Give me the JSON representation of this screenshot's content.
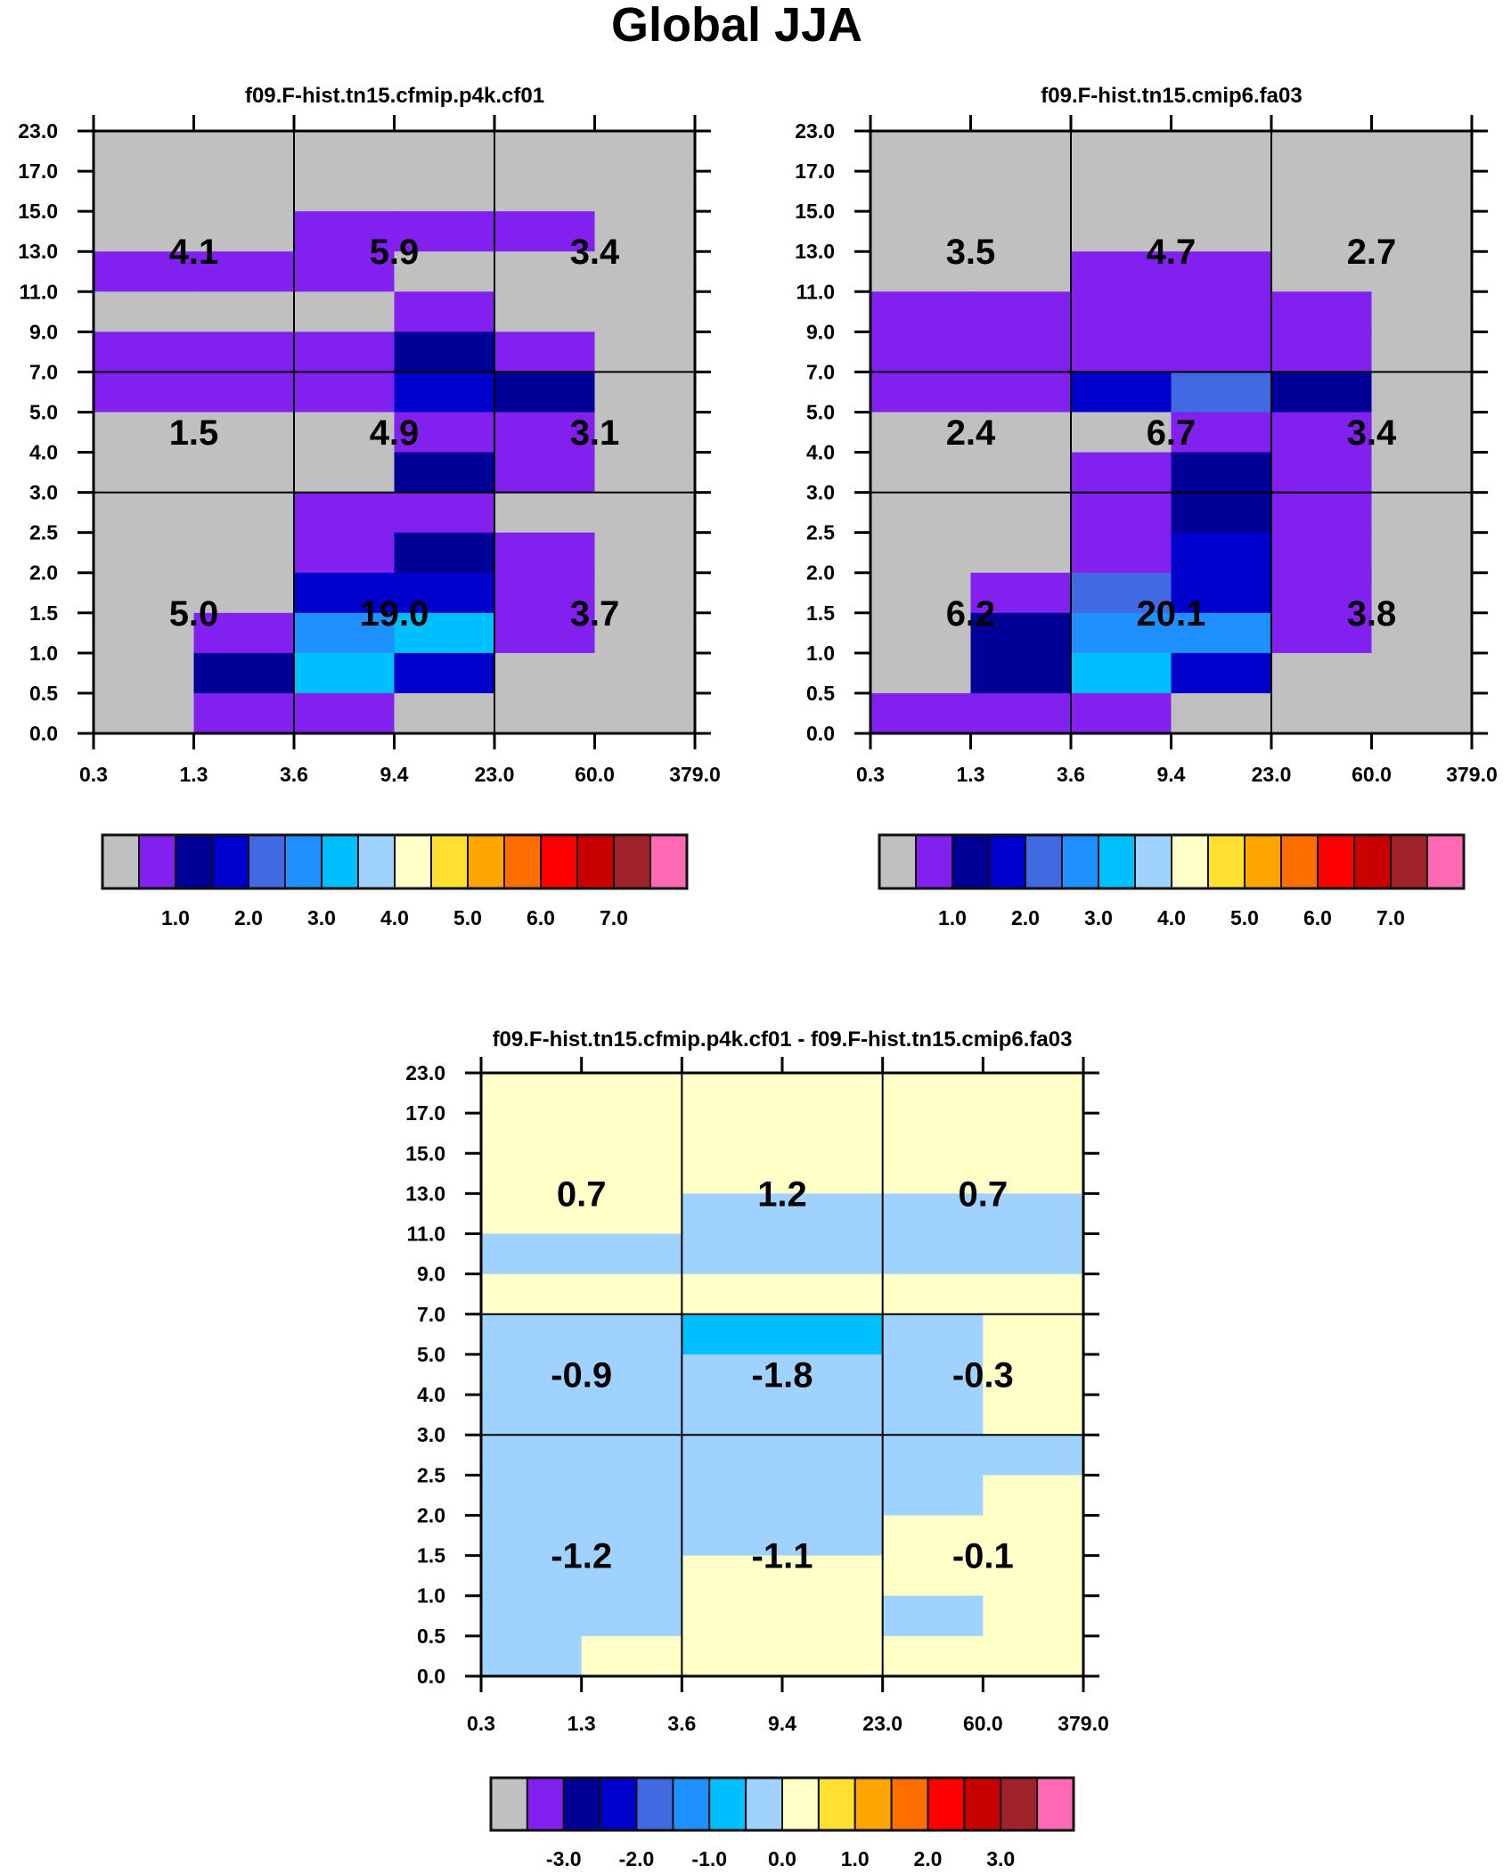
{
  "title": "Global JJA",
  "palette": [
    "#C0C0C0",
    "#8220F0",
    "#000096",
    "#0000CD",
    "#4169E1",
    "#1E90FF",
    "#00BFFF",
    "#A0D2FF",
    "#FFFFC8",
    "#FFDF2F",
    "#FFA500",
    "#FF6E00",
    "#FF0000",
    "#C80000",
    "#A0222A",
    "#FF69B4"
  ],
  "chart_data": [
    {
      "type": "heatmap",
      "title": "f09.F-hist.tn15.cfmip.p4k.cf01",
      "x_ticks": [
        "0.3",
        "1.3",
        "3.6",
        "9.4",
        "23.0",
        "60.0",
        "379.0"
      ],
      "y_ticks": [
        "0.0",
        "0.5",
        "1.0",
        "1.5",
        "2.0",
        "2.5",
        "3.0",
        "4.0",
        "5.0",
        "7.0",
        "9.0",
        "11.0",
        "13.0",
        "15.0",
        "17.0",
        "23.0"
      ],
      "bins_top_to_bottom": [
        [
          0,
          0,
          0,
          0,
          0,
          0
        ],
        [
          0,
          0,
          0,
          0,
          0,
          0
        ],
        [
          0,
          0,
          1,
          1,
          1,
          0
        ],
        [
          1,
          1,
          1,
          0,
          0,
          0
        ],
        [
          0,
          0,
          0,
          1,
          0,
          0
        ],
        [
          1,
          1,
          1,
          2,
          1,
          0
        ],
        [
          1,
          1,
          1,
          3,
          2,
          0
        ],
        [
          0,
          0,
          0,
          1,
          1,
          0
        ],
        [
          0,
          0,
          0,
          2,
          1,
          0
        ],
        [
          0,
          0,
          1,
          1,
          0,
          0
        ],
        [
          0,
          0,
          1,
          2,
          1,
          0
        ],
        [
          0,
          0,
          3,
          3,
          1,
          0
        ],
        [
          0,
          1,
          5,
          6,
          1,
          0
        ],
        [
          0,
          2,
          6,
          3,
          0,
          0
        ],
        [
          0,
          1,
          1,
          0,
          0,
          0
        ]
      ],
      "box_values": [
        [
          "4.1",
          "5.9",
          "3.4"
        ],
        [
          "1.5",
          "4.9",
          "3.1"
        ],
        [
          "5.0",
          "19.0",
          "3.7"
        ]
      ],
      "colorbar_labels": [
        "1.0",
        "2.0",
        "3.0",
        "4.0",
        "5.0",
        "6.0",
        "7.0"
      ]
    },
    {
      "type": "heatmap",
      "title": "f09.F-hist.tn15.cmip6.fa03",
      "x_ticks": [
        "0.3",
        "1.3",
        "3.6",
        "9.4",
        "23.0",
        "60.0",
        "379.0"
      ],
      "y_ticks": [
        "0.0",
        "0.5",
        "1.0",
        "1.5",
        "2.0",
        "2.5",
        "3.0",
        "4.0",
        "5.0",
        "7.0",
        "9.0",
        "11.0",
        "13.0",
        "15.0",
        "17.0",
        "23.0"
      ],
      "bins_top_to_bottom": [
        [
          0,
          0,
          0,
          0,
          0,
          0
        ],
        [
          0,
          0,
          0,
          0,
          0,
          0
        ],
        [
          0,
          0,
          0,
          0,
          0,
          0
        ],
        [
          0,
          0,
          1,
          1,
          0,
          0
        ],
        [
          1,
          1,
          1,
          1,
          1,
          0
        ],
        [
          1,
          1,
          1,
          1,
          1,
          0
        ],
        [
          1,
          1,
          3,
          4,
          2,
          0
        ],
        [
          0,
          0,
          0,
          1,
          1,
          0
        ],
        [
          0,
          0,
          1,
          2,
          1,
          0
        ],
        [
          0,
          0,
          1,
          2,
          1,
          0
        ],
        [
          0,
          0,
          1,
          3,
          1,
          0
        ],
        [
          0,
          1,
          4,
          3,
          1,
          0
        ],
        [
          0,
          2,
          5,
          5,
          1,
          0
        ],
        [
          0,
          2,
          6,
          3,
          0,
          0
        ],
        [
          1,
          1,
          1,
          0,
          0,
          0
        ]
      ],
      "box_values": [
        [
          "3.5",
          "4.7",
          "2.7"
        ],
        [
          "2.4",
          "6.7",
          "3.4"
        ],
        [
          "6.2",
          "20.1",
          "3.8"
        ]
      ],
      "colorbar_labels": [
        "1.0",
        "2.0",
        "3.0",
        "4.0",
        "5.0",
        "6.0",
        "7.0"
      ]
    },
    {
      "type": "heatmap",
      "title": "f09.F-hist.tn15.cfmip.p4k.cf01 - f09.F-hist.tn15.cmip6.fa03",
      "x_ticks": [
        "0.3",
        "1.3",
        "3.6",
        "9.4",
        "23.0",
        "60.0",
        "379.0"
      ],
      "y_ticks": [
        "0.0",
        "0.5",
        "1.0",
        "1.5",
        "2.0",
        "2.5",
        "3.0",
        "4.0",
        "5.0",
        "7.0",
        "9.0",
        "11.0",
        "13.0",
        "15.0",
        "17.0",
        "23.0"
      ],
      "bins_top_to_bottom": [
        [
          8,
          8,
          8,
          8,
          8,
          8
        ],
        [
          8,
          8,
          8,
          8,
          8,
          8
        ],
        [
          8,
          8,
          8,
          8,
          8,
          8
        ],
        [
          8,
          8,
          7,
          7,
          7,
          7
        ],
        [
          7,
          7,
          7,
          7,
          7,
          7
        ],
        [
          8,
          8,
          8,
          8,
          8,
          8
        ],
        [
          7,
          7,
          6,
          6,
          7,
          8
        ],
        [
          7,
          7,
          7,
          7,
          7,
          8
        ],
        [
          7,
          7,
          7,
          7,
          7,
          8
        ],
        [
          7,
          7,
          7,
          7,
          7,
          7
        ],
        [
          7,
          7,
          7,
          7,
          7,
          8
        ],
        [
          7,
          7,
          7,
          7,
          8,
          8
        ],
        [
          7,
          7,
          8,
          8,
          8,
          8
        ],
        [
          7,
          7,
          8,
          8,
          7,
          8
        ],
        [
          7,
          8,
          8,
          8,
          8,
          8
        ]
      ],
      "box_values": [
        [
          "0.7",
          "1.2",
          "0.7"
        ],
        [
          "-0.9",
          "-1.8",
          "-0.3"
        ],
        [
          "-1.2",
          "-1.1",
          "-0.1"
        ]
      ],
      "colorbar_labels": [
        "-3.0",
        "-2.0",
        "-1.0",
        "0.0",
        "1.0",
        "2.0",
        "3.0"
      ]
    }
  ]
}
